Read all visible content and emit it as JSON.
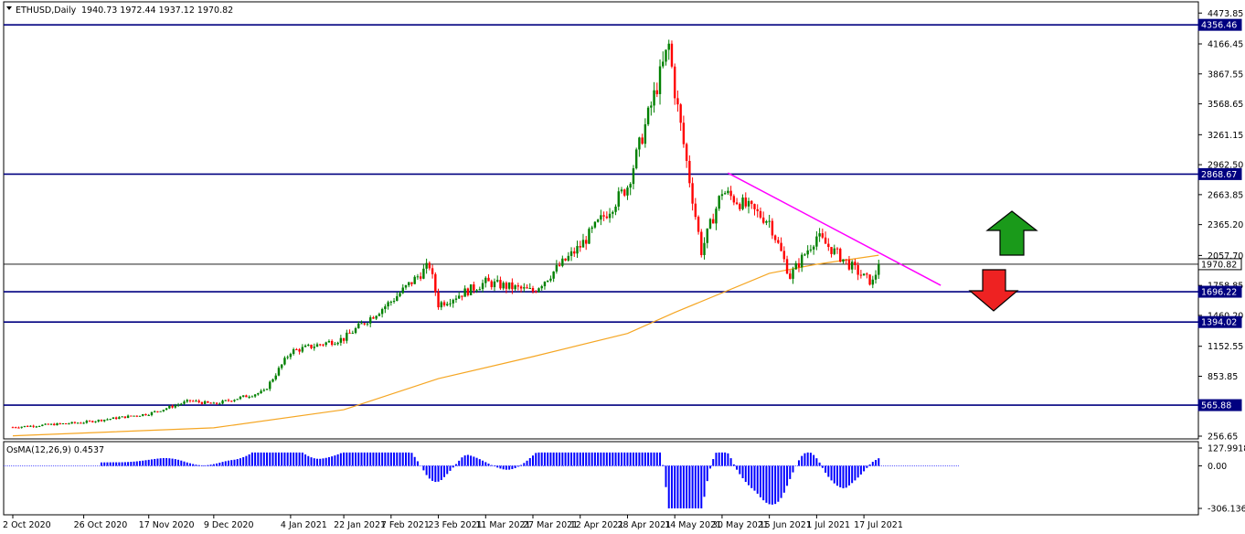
{
  "symbol_header": {
    "symbol": "ETHUSD,Daily",
    "ohlc": "1940.73 1972.44 1937.12 1970.82"
  },
  "indicator_header": "OsMA(12,26,9) 0.4537",
  "colors": {
    "background": "#ffffff",
    "bull_candle": "#008000",
    "bear_candle": "#ff0000",
    "level_line": "#000080",
    "price_label_bg": "#000080",
    "ma_line": "#f5a623",
    "trend_line": "#ff00ff",
    "osma_bars": "#0000ff",
    "arrow_up": "#1a9a1a",
    "arrow_down": "#ee2222"
  },
  "icons": [
    "dropdown-triangle-icon",
    "arrow-up-icon",
    "arrow-down-icon"
  ],
  "chart_data": [
    {
      "type": "candlestick",
      "title": "ETHUSD,Daily",
      "ylim": [
        256.65,
        4473.85
      ],
      "y_ticks": [
        4473.85,
        4166.45,
        3867.55,
        3568.65,
        3261.15,
        2962.5,
        2663.85,
        2365.2,
        2057.7,
        1758.85,
        1460.2,
        1152.55,
        853.85,
        256.65
      ],
      "x_tick_labels": [
        "2 Oct 2020",
        "26 Oct 2020",
        "17 Nov 2020",
        "9 Dec 2020",
        "4 Jan 2021",
        "22 Jan 2021",
        "7 Feb 2021",
        "23 Feb 2021",
        "11 Mar 2021",
        "27 Mar 2021",
        "12 Apr 2021",
        "28 Apr 2021",
        "14 May 2021",
        "30 May 2021",
        "15 Jun 2021",
        "1 Jul 2021",
        "17 Jul 2021"
      ],
      "close_series": [
        {
          "date": "2 Oct 2020",
          "close": 346
        },
        {
          "date": "26 Oct 2020",
          "close": 395
        },
        {
          "date": "17 Nov 2020",
          "close": 480
        },
        {
          "date": "1 Dec 2020",
          "close": 610
        },
        {
          "date": "9 Dec 2020",
          "close": 575
        },
        {
          "date": "26 Dec 2020",
          "close": 700
        },
        {
          "date": "4 Jan 2021",
          "close": 1100
        },
        {
          "date": "22 Jan 2021",
          "close": 1230
        },
        {
          "date": "7 Feb 2021",
          "close": 1600
        },
        {
          "date": "20 Feb 2021",
          "close": 1960
        },
        {
          "date": "23 Feb 2021",
          "close": 1570
        },
        {
          "date": "11 Mar 2021",
          "close": 1790
        },
        {
          "date": "27 Mar 2021",
          "close": 1700
        },
        {
          "date": "12 Apr 2021",
          "close": 2150
        },
        {
          "date": "28 Apr 2021",
          "close": 2750
        },
        {
          "date": "12 May 2021",
          "close": 4150
        },
        {
          "date": "14 May 2021",
          "close": 3700
        },
        {
          "date": "23 May 2021",
          "close": 2100
        },
        {
          "date": "30 May 2021",
          "close": 2700
        },
        {
          "date": "15 Jun 2021",
          "close": 2400
        },
        {
          "date": "22 Jun 2021",
          "close": 1850
        },
        {
          "date": "1 Jul 2021",
          "close": 2250
        },
        {
          "date": "17 Jul 2021",
          "close": 1840
        },
        {
          "date": "20 Jul 2021",
          "close": 1790
        },
        {
          "date": "22 Jul 2021",
          "close": 1970.82
        }
      ],
      "moving_average_series": [
        {
          "date": "2 Oct 2020",
          "value": 260
        },
        {
          "date": "9 Dec 2020",
          "value": 340
        },
        {
          "date": "22 Jan 2021",
          "value": 520
        },
        {
          "date": "23 Feb 2021",
          "value": 830
        },
        {
          "date": "27 Mar 2021",
          "value": 1050
        },
        {
          "date": "28 Apr 2021",
          "value": 1280
        },
        {
          "date": "14 May 2021",
          "value": 1490
        },
        {
          "date": "15 Jun 2021",
          "value": 1880
        },
        {
          "date": "1 Jul 2021",
          "value": 1970
        },
        {
          "date": "22 Jul 2021",
          "value": 2060
        }
      ],
      "horizontal_levels": [
        {
          "value": 4356.46,
          "label": "4356.46"
        },
        {
          "value": 2868.67,
          "label": "2868.67"
        },
        {
          "value": 1696.22,
          "label": "1696.22"
        },
        {
          "value": 1394.02,
          "label": "1394.02"
        },
        {
          "value": 565.88,
          "label": "565.88"
        }
      ],
      "current_price": {
        "value": 1970.82,
        "label": "1970.82"
      },
      "trend_line": {
        "start": {
          "date": "1 Jun 2021",
          "value": 2880
        },
        "end": {
          "date": "12 Aug 2021",
          "value": 1760
        }
      }
    },
    {
      "type": "bar",
      "title": "OsMA(12,26,9) 0.4537",
      "ylim": [
        -306.136,
        127.9918
      ],
      "y_ticks": [
        127.9918,
        0.0,
        -306.136
      ]
    }
  ]
}
